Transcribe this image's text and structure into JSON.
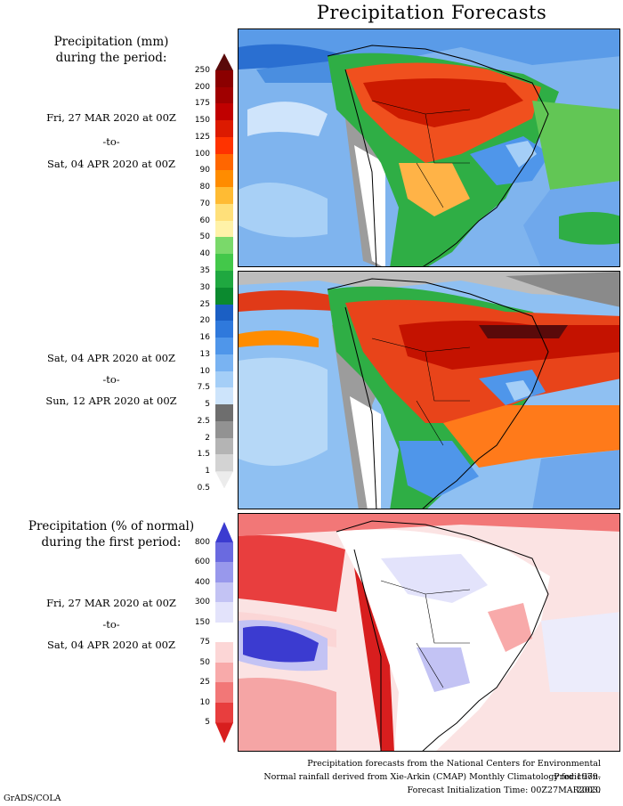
{
  "title": "Precipitation Forecasts",
  "panel1": {
    "header_line1": "Precipitation (mm)",
    "header_line2": "during the period:",
    "start": "Fri, 27 MAR 2020 at 00Z",
    "sep": "-to-",
    "end": "Sat, 04 APR 2020 at 00Z"
  },
  "panel2": {
    "start": "Sat, 04 APR 2020 at 00Z",
    "sep": "-to-",
    "end": "Sun, 12 APR 2020 at 00Z"
  },
  "panel3": {
    "header_line1": "Precipitation (% of normal)",
    "header_line2": "during the first period:",
    "start": "Fri, 27 MAR 2020 at 00Z",
    "sep": "-to-",
    "end": "Sat, 04 APR 2020 at 00Z"
  },
  "precip_scale": {
    "ticks": [
      "250",
      "200",
      "175",
      "150",
      "125",
      "100",
      "90",
      "80",
      "70",
      "60",
      "50",
      "40",
      "35",
      "30",
      "25",
      "20",
      "16",
      "13",
      "10",
      "7.5",
      "5",
      "2.5",
      "2",
      "1.5",
      "1",
      "0.5"
    ],
    "colors": [
      "#5a0a0a",
      "#8b0000",
      "#a00000",
      "#c00000",
      "#dc1a00",
      "#ff3300",
      "#ff6600",
      "#ff8c00",
      "#ffbb33",
      "#ffe07a",
      "#fff2a8",
      "#7ad96a",
      "#43c84a",
      "#1fa840",
      "#0b8a2f",
      "#1b5fc4",
      "#2f79dc",
      "#4f96ea",
      "#79b3f2",
      "#a4cef7",
      "#cde4fb",
      "#6e6e6e",
      "#929292",
      "#b4b4b4",
      "#d3d3d3",
      "#ececec"
    ]
  },
  "percent_scale": {
    "ticks": [
      "800",
      "600",
      "400",
      "300",
      "150",
      "75",
      "50",
      "25",
      "10",
      "5"
    ],
    "colors": [
      "#3b3bd0",
      "#6a6ae0",
      "#9898ec",
      "#c3c3f4",
      "#e3e3fb",
      "#ffffff",
      "#fcd6d6",
      "#f8aaaa",
      "#f27777",
      "#e83e3e",
      "#d81e1e"
    ]
  },
  "footer": {
    "line1": "Precipitation forecasts from the National Centers for Environmental Prediction.",
    "line2": "Normal rainfall derived from Xie-Arkin (CMAP) Monthly Climatology for 1979-2003.",
    "line3": "Forecast Initialization Time: 00Z27MAR2020"
  },
  "credit": "GrADS/COLA"
}
